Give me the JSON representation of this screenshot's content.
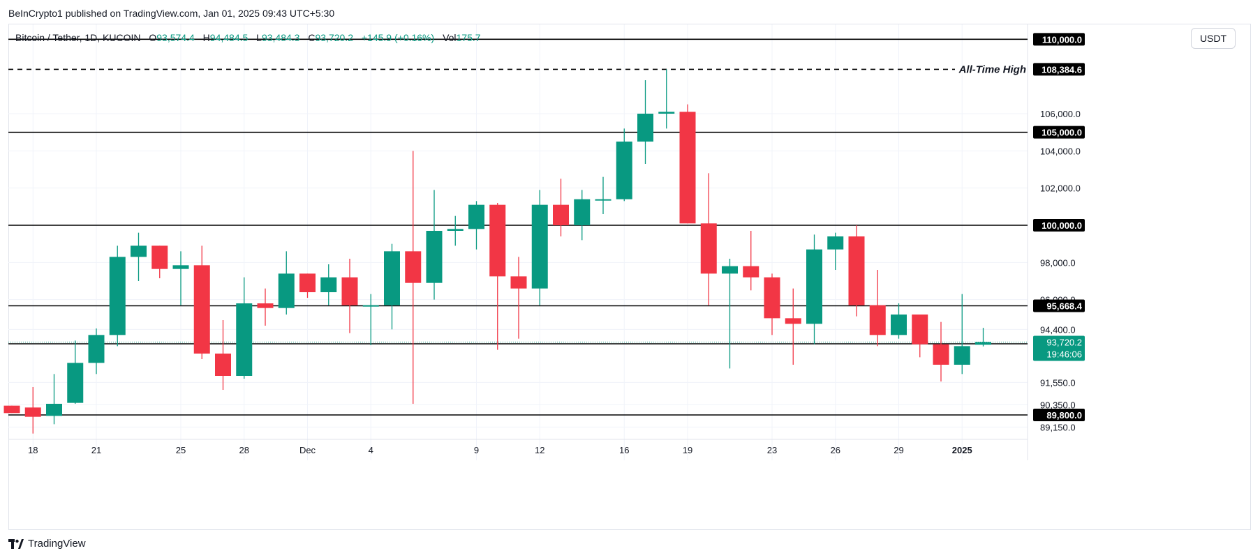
{
  "header": {
    "publisher": "BeInCrypto1 published on TradingView.com, Jan 01, 2025 09:43 UTC+5:30"
  },
  "legend": {
    "symbol": "Bitcoin / Tether, 1D, KUCOIN",
    "open_label": "O",
    "open": "93,574.4",
    "high_label": "H",
    "high": "94,484.5",
    "low_label": "L",
    "low": "93,484.3",
    "close_label": "C",
    "close": "93,720.2",
    "change": "+145.9 (+0.16%)",
    "vol_label": "Vol",
    "vol": "175.7"
  },
  "currency_button": "USDT",
  "footer": {
    "brand": "TradingView"
  },
  "colors": {
    "up": "#089981",
    "down": "#f23645",
    "level": "#000000",
    "grid": "#f0f3fa"
  },
  "chart_data": {
    "type": "candlestick",
    "x_ticks": [
      "18",
      "21",
      "25",
      "28",
      "Dec",
      "4",
      "9",
      "12",
      "16",
      "19",
      "23",
      "26",
      "29",
      "2025"
    ],
    "x_tick_positions": [
      1,
      4,
      8,
      11,
      14,
      17,
      22,
      25,
      29,
      32,
      36,
      39,
      42,
      45
    ],
    "y_ticks": [
      {
        "value": 106000,
        "label": "106,000.0"
      },
      {
        "value": 104000,
        "label": "104,000.0"
      },
      {
        "value": 102000,
        "label": "102,000.0"
      },
      {
        "value": 98000,
        "label": "98,000.0"
      },
      {
        "value": 96000,
        "label": "96,000.0"
      },
      {
        "value": 94400,
        "label": "94,400.0"
      },
      {
        "value": 91550,
        "label": "91,550.0"
      },
      {
        "value": 90350,
        "label": "90,350.0"
      },
      {
        "value": 89150,
        "label": "89,150.0"
      }
    ],
    "levels": [
      {
        "value": 110000,
        "label": "110,000.0",
        "style": "solid"
      },
      {
        "value": 108384.6,
        "label": "108,384.6",
        "style": "dashed",
        "annotation": "All-Time High"
      },
      {
        "value": 105000,
        "label": "105,000.0",
        "style": "solid"
      },
      {
        "value": 100000,
        "label": "100,000.0",
        "style": "solid"
      },
      {
        "value": 95668.4,
        "label": "95,668.4",
        "style": "solid"
      },
      {
        "value": 93625.1,
        "label": "93,625.1",
        "style": "solid"
      },
      {
        "value": 89800,
        "label": "89,800.0",
        "style": "solid"
      }
    ],
    "last_price": {
      "value": 93720.2,
      "label": "93,720.2",
      "countdown": "19:46:06"
    },
    "candles": [
      {
        "o": 90300,
        "h": 90300,
        "l": 89900,
        "c": 89900
      },
      {
        "o": 90200,
        "h": 91300,
        "l": 88800,
        "c": 89700
      },
      {
        "o": 89750,
        "h": 92000,
        "l": 89300,
        "c": 90400
      },
      {
        "o": 90450,
        "h": 93800,
        "l": 90400,
        "c": 92600
      },
      {
        "o": 92600,
        "h": 94450,
        "l": 92000,
        "c": 94100
      },
      {
        "o": 94100,
        "h": 98900,
        "l": 93500,
        "c": 98300
      },
      {
        "o": 98300,
        "h": 99600,
        "l": 97000,
        "c": 98900
      },
      {
        "o": 98900,
        "h": 98900,
        "l": 97150,
        "c": 97650
      },
      {
        "o": 97650,
        "h": 98600,
        "l": 95700,
        "c": 97850
      },
      {
        "o": 97850,
        "h": 98900,
        "l": 92800,
        "c": 93100
      },
      {
        "o": 93100,
        "h": 94900,
        "l": 91150,
        "c": 91900
      },
      {
        "o": 91900,
        "h": 97200,
        "l": 91750,
        "c": 95800
      },
      {
        "o": 95800,
        "h": 96600,
        "l": 94600,
        "c": 95550
      },
      {
        "o": 95550,
        "h": 98600,
        "l": 95200,
        "c": 97400
      },
      {
        "o": 97400,
        "h": 97400,
        "l": 96100,
        "c": 96400
      },
      {
        "o": 96400,
        "h": 97900,
        "l": 95700,
        "c": 97200
      },
      {
        "o": 97200,
        "h": 98200,
        "l": 94200,
        "c": 95700
      },
      {
        "o": 95700,
        "h": 96300,
        "l": 93550,
        "c": 95700
      },
      {
        "o": 95700,
        "h": 99000,
        "l": 94400,
        "c": 98600
      },
      {
        "o": 98600,
        "h": 104000,
        "l": 90400,
        "c": 96900
      },
      {
        "o": 96900,
        "h": 101900,
        "l": 96000,
        "c": 99700
      },
      {
        "o": 99700,
        "h": 100500,
        "l": 98900,
        "c": 99800
      },
      {
        "o": 99800,
        "h": 101300,
        "l": 98700,
        "c": 101100
      },
      {
        "o": 101100,
        "h": 101200,
        "l": 93300,
        "c": 97250
      },
      {
        "o": 97250,
        "h": 98300,
        "l": 93900,
        "c": 96600
      },
      {
        "o": 96600,
        "h": 101900,
        "l": 95700,
        "c": 101100
      },
      {
        "o": 101100,
        "h": 102500,
        "l": 99400,
        "c": 100000
      },
      {
        "o": 100000,
        "h": 101900,
        "l": 99200,
        "c": 101400
      },
      {
        "o": 101400,
        "h": 102600,
        "l": 100600,
        "c": 101400
      },
      {
        "o": 101400,
        "h": 105200,
        "l": 101300,
        "c": 104500
      },
      {
        "o": 104500,
        "h": 107800,
        "l": 103300,
        "c": 106000
      },
      {
        "o": 106000,
        "h": 108384.6,
        "l": 105200,
        "c": 106100
      },
      {
        "o": 106100,
        "h": 106500,
        "l": 100100,
        "c": 100100
      },
      {
        "o": 100100,
        "h": 102800,
        "l": 95700,
        "c": 97400
      },
      {
        "o": 97400,
        "h": 98200,
        "l": 92300,
        "c": 97800
      },
      {
        "o": 97800,
        "h": 99700,
        "l": 96500,
        "c": 97200
      },
      {
        "o": 97200,
        "h": 97400,
        "l": 94100,
        "c": 95000
      },
      {
        "o": 95000,
        "h": 96600,
        "l": 92500,
        "c": 94700
      },
      {
        "o": 94700,
        "h": 99500,
        "l": 93600,
        "c": 98700
      },
      {
        "o": 98700,
        "h": 99600,
        "l": 97600,
        "c": 99400
      },
      {
        "o": 99400,
        "h": 100000,
        "l": 95100,
        "c": 95700
      },
      {
        "o": 95700,
        "h": 97600,
        "l": 93500,
        "c": 94100
      },
      {
        "o": 94100,
        "h": 95800,
        "l": 93900,
        "c": 95200
      },
      {
        "o": 95200,
        "h": 95200,
        "l": 92900,
        "c": 93600
      },
      {
        "o": 93600,
        "h": 94800,
        "l": 91600,
        "c": 92500
      },
      {
        "o": 92500,
        "h": 96300,
        "l": 92000,
        "c": 93500
      },
      {
        "o": 93574.4,
        "h": 94484.5,
        "l": 93484.3,
        "c": 93720.2
      }
    ]
  }
}
